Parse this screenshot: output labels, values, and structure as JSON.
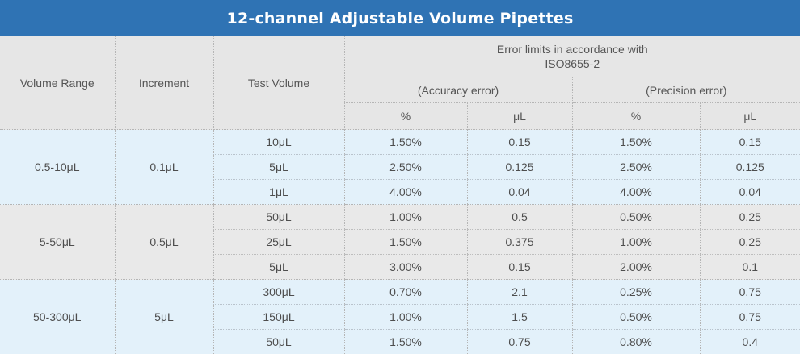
{
  "title": "12-channel Adjustable Volume Pipettes",
  "headers": {
    "volume_range": "Volume Range",
    "increment": "Increment",
    "test_volume": "Test Volume",
    "error_limits_line1": "Error limits in accordance with",
    "error_limits_line2": "ISO8655-2",
    "accuracy": "(Accuracy error)",
    "precision": "(Precision error)",
    "unit_pct": "%",
    "unit_ul": "μL"
  },
  "groups": [
    {
      "volume_range": "0.5-10μL",
      "increment": "0.1μL",
      "rows": [
        {
          "test_volume": "10μL",
          "acc_pct": "1.50%",
          "acc_ul": "0.15",
          "prec_pct": "1.50%",
          "prec_ul": "0.15"
        },
        {
          "test_volume": "5μL",
          "acc_pct": "2.50%",
          "acc_ul": "0.125",
          "prec_pct": "2.50%",
          "prec_ul": "0.125"
        },
        {
          "test_volume": "1μL",
          "acc_pct": "4.00%",
          "acc_ul": "0.04",
          "prec_pct": "4.00%",
          "prec_ul": "0.04"
        }
      ]
    },
    {
      "volume_range": "5-50μL",
      "increment": "0.5μL",
      "rows": [
        {
          "test_volume": "50μL",
          "acc_pct": "1.00%",
          "acc_ul": "0.5",
          "prec_pct": "0.50%",
          "prec_ul": "0.25"
        },
        {
          "test_volume": "25μL",
          "acc_pct": "1.50%",
          "acc_ul": "0.375",
          "prec_pct": "1.00%",
          "prec_ul": "0.25"
        },
        {
          "test_volume": "5μL",
          "acc_pct": "3.00%",
          "acc_ul": "0.15",
          "prec_pct": "2.00%",
          "prec_ul": "0.1"
        }
      ]
    },
    {
      "volume_range": "50-300μL",
      "increment": "5μL",
      "rows": [
        {
          "test_volume": "300μL",
          "acc_pct": "0.70%",
          "acc_ul": "2.1",
          "prec_pct": "0.25%",
          "prec_ul": "0.75"
        },
        {
          "test_volume": "150μL",
          "acc_pct": "1.00%",
          "acc_ul": "1.5",
          "prec_pct": "0.50%",
          "prec_ul": "0.75"
        },
        {
          "test_volume": "50μL",
          "acc_pct": "1.50%",
          "acc_ul": "0.75",
          "prec_pct": "0.80%",
          "prec_ul": "0.4"
        }
      ]
    }
  ]
}
